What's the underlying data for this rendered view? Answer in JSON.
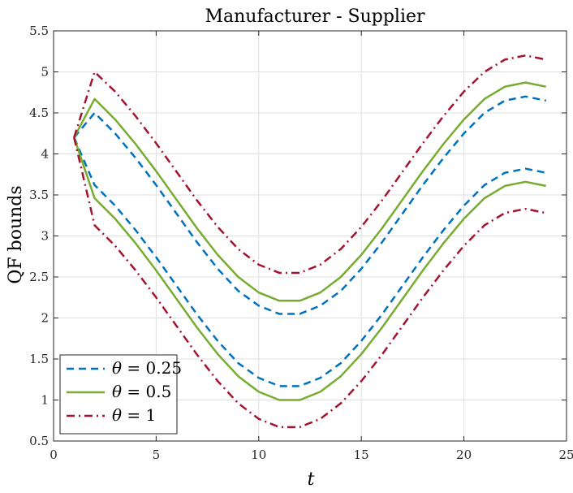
{
  "chart_data": {
    "type": "line",
    "title": "Manufacturer - Supplier",
    "xlabel": "t",
    "ylabel": "QF bounds",
    "xlim": [
      0,
      25
    ],
    "ylim": [
      0.5,
      5.5
    ],
    "xticks": [
      0,
      5,
      10,
      15,
      20,
      25
    ],
    "yticks": [
      0.5,
      1,
      1.5,
      2,
      2.5,
      3,
      3.5,
      4,
      4.5,
      5,
      5.5
    ],
    "grid": true,
    "legend_position": "bottom-left",
    "x": [
      1,
      2,
      3,
      4,
      5,
      6,
      7,
      8,
      9,
      10,
      11,
      12,
      13,
      14,
      15,
      16,
      17,
      18,
      19,
      20,
      21,
      22,
      23,
      24
    ],
    "series": [
      {
        "name": "θ = 0.25",
        "color": "#0072BD",
        "dash": "dashed",
        "upper": [
          4.2,
          4.5,
          4.25,
          3.95,
          3.62,
          3.27,
          2.92,
          2.6,
          2.33,
          2.15,
          2.05,
          2.05,
          2.15,
          2.33,
          2.6,
          2.92,
          3.27,
          3.62,
          3.95,
          4.25,
          4.5,
          4.65,
          4.7,
          4.65
        ],
        "lower": [
          4.2,
          3.62,
          3.37,
          3.07,
          2.74,
          2.39,
          2.04,
          1.72,
          1.45,
          1.27,
          1.17,
          1.17,
          1.27,
          1.45,
          1.72,
          2.04,
          2.39,
          2.74,
          3.07,
          3.37,
          3.62,
          3.77,
          3.82,
          3.77
        ]
      },
      {
        "name": "θ = 0.5",
        "color": "#77AC30",
        "dash": "solid",
        "upper": [
          4.2,
          4.67,
          4.42,
          4.12,
          3.79,
          3.44,
          3.09,
          2.77,
          2.5,
          2.31,
          2.21,
          2.21,
          2.31,
          2.5,
          2.77,
          3.09,
          3.44,
          3.79,
          4.12,
          4.42,
          4.67,
          4.82,
          4.87,
          4.82
        ],
        "lower": [
          4.2,
          3.46,
          3.21,
          2.91,
          2.58,
          2.23,
          1.88,
          1.56,
          1.29,
          1.1,
          1.0,
          1.0,
          1.1,
          1.29,
          1.56,
          1.88,
          2.23,
          2.58,
          2.91,
          3.21,
          3.46,
          3.61,
          3.66,
          3.61
        ]
      },
      {
        "name": "θ = 1",
        "color": "#A2142F",
        "dash": "dashdot",
        "upper": [
          4.2,
          5.0,
          4.76,
          4.46,
          4.13,
          3.78,
          3.43,
          3.11,
          2.84,
          2.65,
          2.55,
          2.55,
          2.65,
          2.84,
          3.11,
          3.43,
          3.78,
          4.13,
          4.46,
          4.76,
          5.0,
          5.15,
          5.2,
          5.15
        ],
        "lower": [
          4.2,
          3.13,
          2.88,
          2.58,
          2.25,
          1.9,
          1.55,
          1.23,
          0.96,
          0.77,
          0.67,
          0.67,
          0.77,
          0.96,
          1.23,
          1.55,
          1.9,
          2.25,
          2.58,
          2.88,
          3.13,
          3.28,
          3.33,
          3.28
        ]
      }
    ]
  },
  "legend": {
    "items": [
      {
        "symbol": "θ",
        "rest": " = 0.25"
      },
      {
        "symbol": "θ",
        "rest": " = 0.5"
      },
      {
        "symbol": "θ",
        "rest": " = 1"
      }
    ]
  }
}
